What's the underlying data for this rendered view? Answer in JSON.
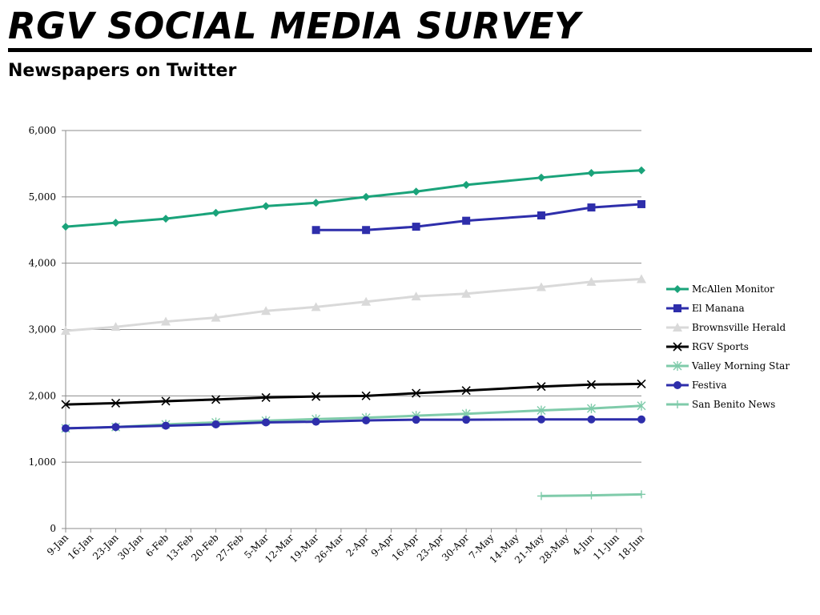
{
  "header": {
    "title": "RGV SOCIAL MEDIA SURVEY",
    "subtitle": "Newspapers on Twitter"
  },
  "chart_data": {
    "type": "line",
    "title": "",
    "xlabel": "",
    "ylabel": "",
    "ylim": [
      0,
      6000
    ],
    "y_ticks": [
      0,
      1000,
      2000,
      3000,
      4000,
      5000,
      6000
    ],
    "y_tick_labels": [
      "0",
      "1,000",
      "2,000",
      "3,000",
      "4,000",
      "5,000",
      "6,000"
    ],
    "categories": [
      "9-Jan",
      "16-Jan",
      "23-Jan",
      "30-Jan",
      "6-Feb",
      "13-Feb",
      "20-Feb",
      "27-Feb",
      "5-Mar",
      "12-Mar",
      "19-Mar",
      "26-Mar",
      "2-Apr",
      "9-Apr",
      "16-Apr",
      "23-Apr",
      "30-Apr",
      "7-May",
      "14-May",
      "21-May",
      "28-May",
      "4-Jun",
      "11-Jun",
      "18-Jun"
    ],
    "grid": true,
    "legend_position": "right",
    "series": [
      {
        "name": "McAllen Monitor",
        "color": "#1aa37a",
        "marker": "diamond",
        "points": [
          [
            0,
            4550
          ],
          [
            2,
            4610
          ],
          [
            4,
            4670
          ],
          [
            6,
            4760
          ],
          [
            8,
            4860
          ],
          [
            10,
            4910
          ],
          [
            12,
            5000
          ],
          [
            14,
            5080
          ],
          [
            16,
            5180
          ],
          [
            19,
            5290
          ],
          [
            21,
            5360
          ],
          [
            23,
            5400
          ]
        ]
      },
      {
        "name": "El Manana",
        "color": "#2e2eab",
        "marker": "square",
        "points": [
          [
            10,
            4500
          ],
          [
            12,
            4500
          ],
          [
            14,
            4550
          ],
          [
            16,
            4640
          ],
          [
            19,
            4720
          ],
          [
            21,
            4840
          ],
          [
            23,
            4890
          ]
        ]
      },
      {
        "name": "Brownsville Herald",
        "color": "#d9d9d9",
        "marker": "triangle",
        "points": [
          [
            0,
            2980
          ],
          [
            2,
            3040
          ],
          [
            4,
            3120
          ],
          [
            6,
            3180
          ],
          [
            8,
            3280
          ],
          [
            10,
            3340
          ],
          [
            12,
            3420
          ],
          [
            14,
            3500
          ],
          [
            16,
            3540
          ],
          [
            19,
            3640
          ],
          [
            21,
            3720
          ],
          [
            23,
            3760
          ]
        ]
      },
      {
        "name": "RGV Sports",
        "color": "#000000",
        "marker": "x",
        "points": [
          [
            0,
            1870
          ],
          [
            2,
            1890
          ],
          [
            4,
            1920
          ],
          [
            6,
            1945
          ],
          [
            8,
            1975
          ],
          [
            10,
            1990
          ],
          [
            12,
            2000
          ],
          [
            14,
            2040
          ],
          [
            16,
            2080
          ],
          [
            19,
            2140
          ],
          [
            21,
            2170
          ],
          [
            23,
            2180
          ]
        ]
      },
      {
        "name": "Valley Morning Star",
        "color": "#7fcbaa",
        "marker": "star",
        "points": [
          [
            0,
            1510
          ],
          [
            2,
            1530
          ],
          [
            4,
            1570
          ],
          [
            6,
            1600
          ],
          [
            8,
            1625
          ],
          [
            10,
            1650
          ],
          [
            12,
            1670
          ],
          [
            14,
            1700
          ],
          [
            16,
            1730
          ],
          [
            19,
            1780
          ],
          [
            21,
            1810
          ],
          [
            23,
            1850
          ]
        ]
      },
      {
        "name": "Festiva",
        "color": "#2e2eab",
        "marker": "circle",
        "points": [
          [
            0,
            1510
          ],
          [
            2,
            1530
          ],
          [
            4,
            1550
          ],
          [
            6,
            1570
          ],
          [
            8,
            1600
          ],
          [
            10,
            1610
          ],
          [
            12,
            1630
          ],
          [
            14,
            1640
          ],
          [
            16,
            1640
          ],
          [
            19,
            1645
          ],
          [
            21,
            1645
          ],
          [
            23,
            1645
          ]
        ]
      },
      {
        "name": "San Benito News",
        "color": "#7fcbaa",
        "marker": "plus",
        "points": [
          [
            19,
            490
          ],
          [
            21,
            500
          ],
          [
            23,
            515
          ]
        ]
      }
    ]
  }
}
